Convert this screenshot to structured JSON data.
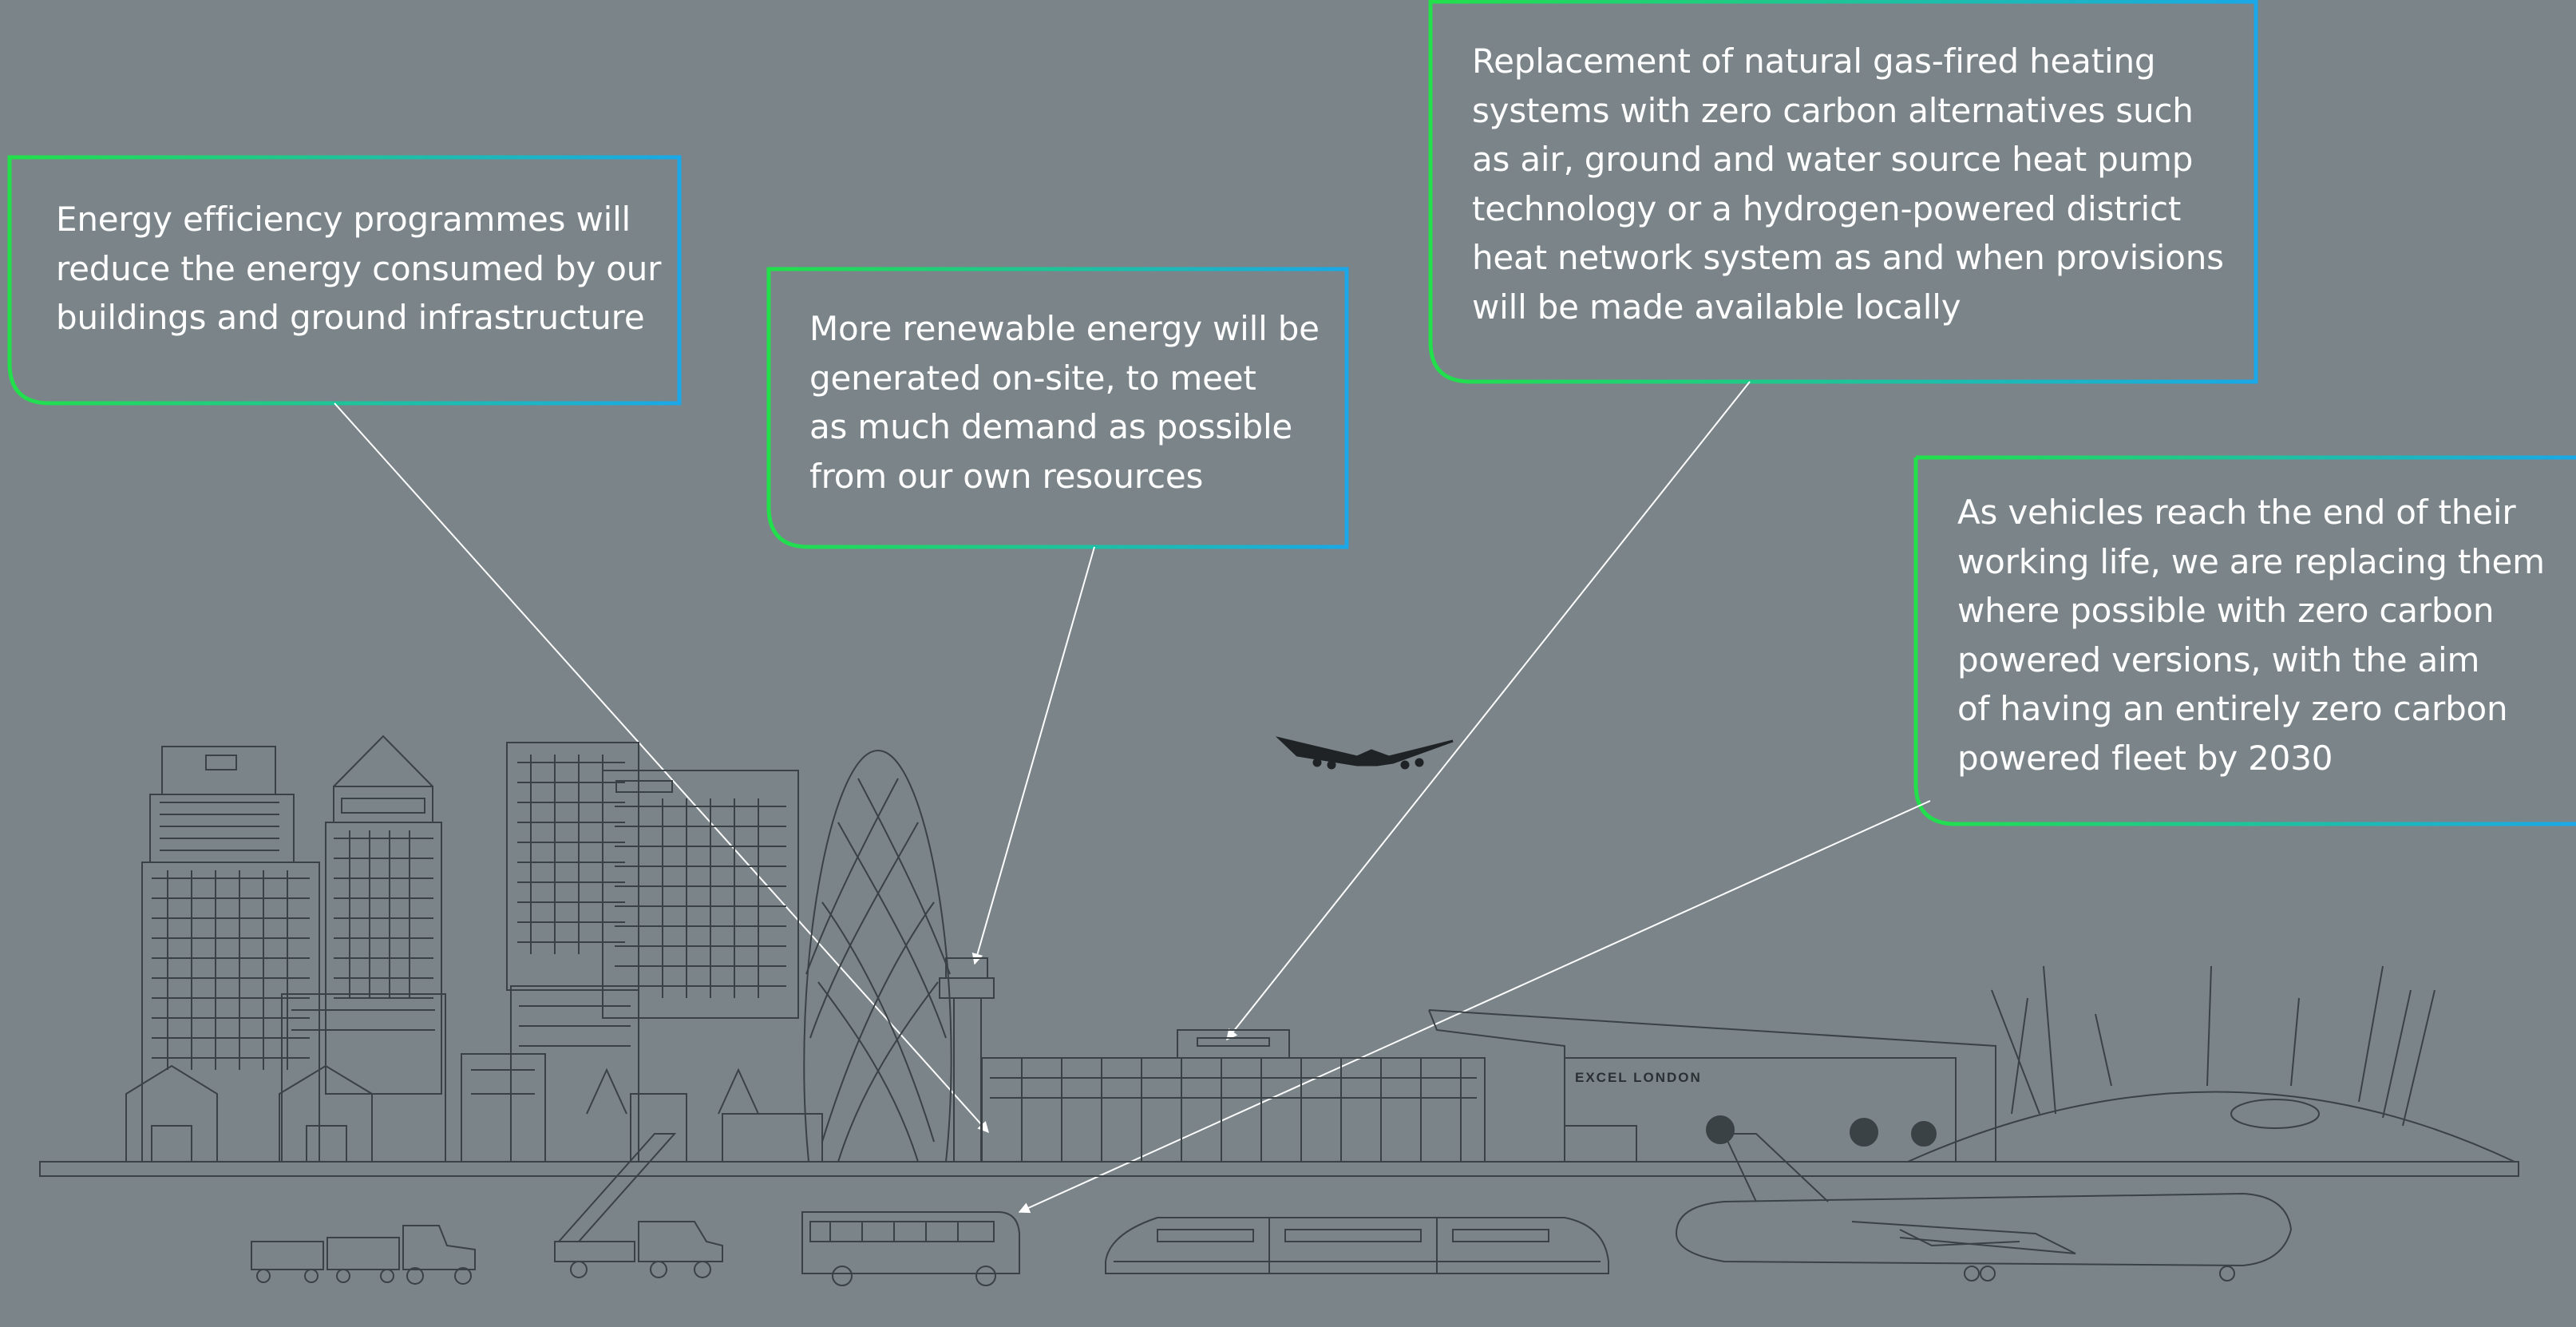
{
  "callouts": [
    {
      "id": "energy-efficiency",
      "lines": [
        "Energy efficiency programmes will",
        "reduce the energy consumed by our",
        "buildings and ground infrastructure"
      ]
    },
    {
      "id": "renewable-energy",
      "lines": [
        "More renewable energy will be",
        "generated on-site, to meet",
        "as much demand as possible",
        "from our own resources"
      ]
    },
    {
      "id": "heating-replacement",
      "lines": [
        "Replacement of natural gas-fired heating",
        "systems with zero carbon alternatives such",
        "as air, ground and water source heat pump",
        "technology or a hydrogen-powered district",
        "heat network system as and when provisions",
        "will be made available locally"
      ]
    },
    {
      "id": "zero-carbon-fleet",
      "lines": [
        "As vehicles reach the end of their",
        "working life, we are replacing them",
        "where possible with zero carbon",
        "powered versions, with the aim",
        "of having an entirely zero carbon",
        "powered fleet by 2030"
      ]
    }
  ],
  "excel_sign": "EXCEL LONDON",
  "colors": {
    "background": "#7a8489",
    "border_gradient_start": "#22e04a",
    "border_gradient_end": "#1aa8e8",
    "line_art": "#3b4246",
    "pointer": "#ffffff",
    "text": "#ffffff"
  }
}
